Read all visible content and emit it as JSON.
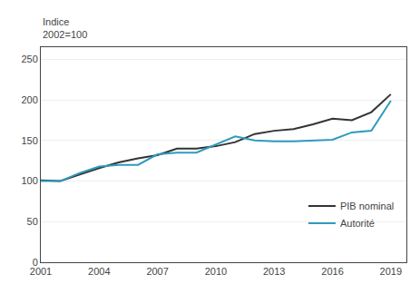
{
  "chart_data": {
    "type": "line",
    "ylabel": [
      "Indice",
      "2002=100"
    ],
    "x": [
      2001,
      2002,
      2003,
      2004,
      2005,
      2006,
      2007,
      2008,
      2009,
      2010,
      2011,
      2012,
      2013,
      2014,
      2015,
      2016,
      2017,
      2018,
      2019
    ],
    "series": [
      {
        "name": "PIB nominal",
        "color": "#333333",
        "values": [
          101,
          100,
          108,
          116,
          123,
          128,
          132,
          140,
          140,
          143,
          148,
          158,
          162,
          164,
          170,
          177,
          175,
          185,
          207
        ]
      },
      {
        "name": "Autorité",
        "color": "#2e9bbf",
        "values": [
          100,
          100,
          110,
          118,
          120,
          120,
          133,
          135,
          135,
          145,
          155,
          150,
          149,
          149,
          150,
          151,
          160,
          162,
          199
        ]
      }
    ],
    "xlim": [
      2001,
      2019.8
    ],
    "xticks": [
      2001,
      2004,
      2007,
      2010,
      2013,
      2016,
      2019
    ],
    "ylim": [
      0,
      265
    ],
    "yticks": [
      0,
      50,
      100,
      150,
      200,
      250
    ],
    "grid": "y",
    "legend": "lower right"
  }
}
